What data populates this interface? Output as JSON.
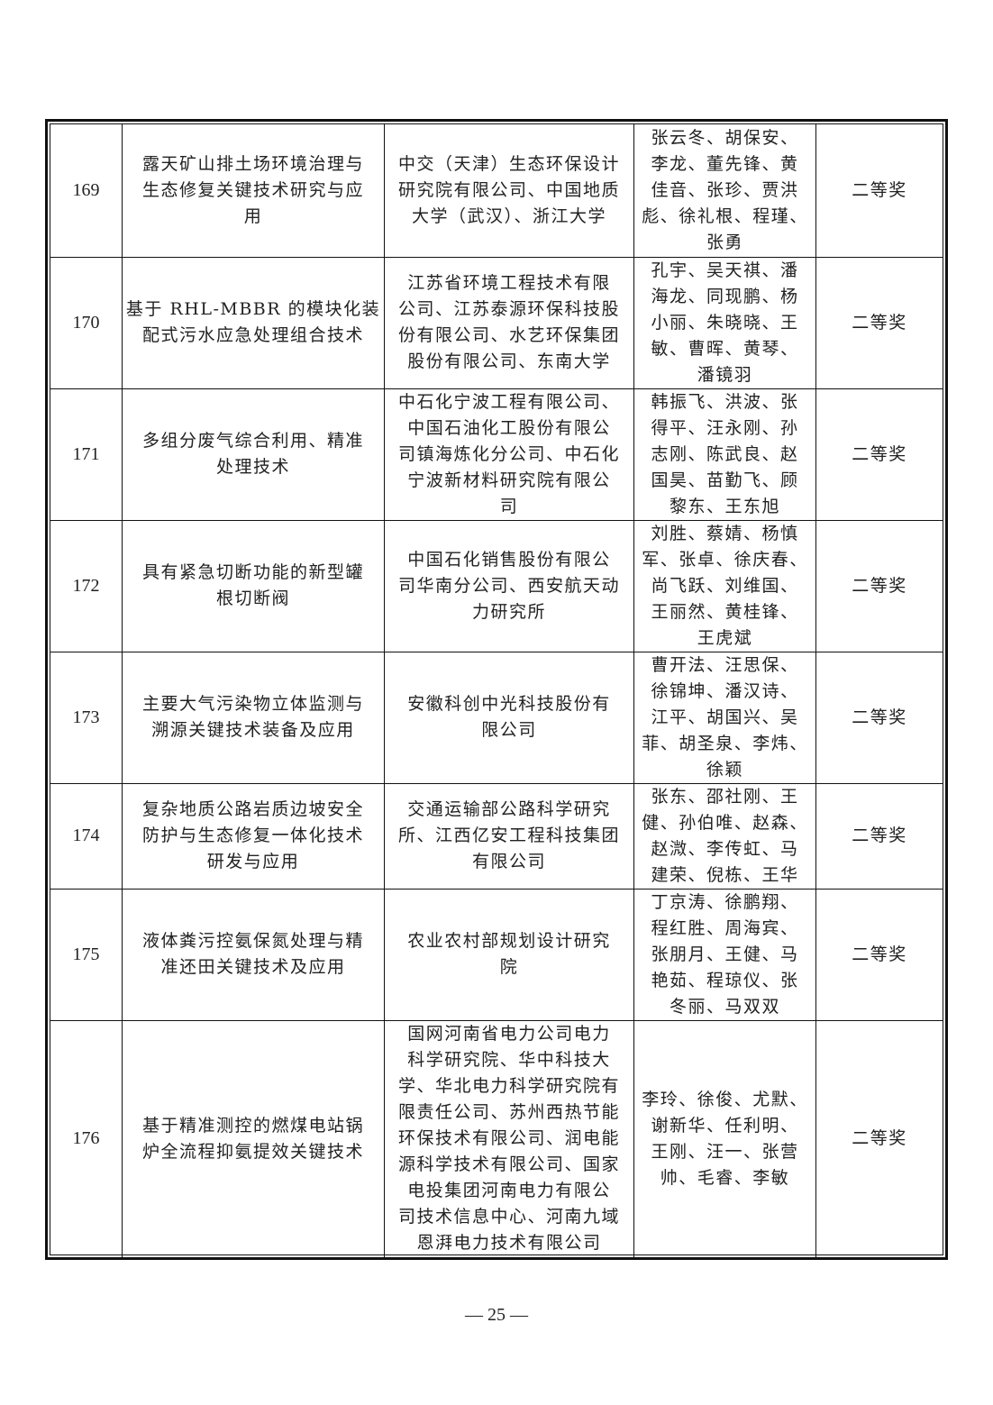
{
  "rows": [
    {
      "no": "169",
      "title": [
        "露天矿山排土场环境治理与",
        "生态修复关键技术研究与应",
        "用"
      ],
      "units": [
        "中交（天津）生态环保设计",
        "研究院有限公司、中国地质",
        "大学（武汉）、浙江大学"
      ],
      "people": [
        "张云冬、胡保安、",
        "李龙、董先锋、黄",
        "佳音、张珍、贾洪",
        "彪、徐礼根、程瑾、",
        "张勇"
      ],
      "award": "二等奖"
    },
    {
      "no": "170",
      "title": [
        "基于 RHL-MBBR 的模块化装",
        "配式污水应急处理组合技术"
      ],
      "units": [
        "江苏省环境工程技术有限",
        "公司、江苏泰源环保科技股",
        "份有限公司、水艺环保集团",
        "股份有限公司、东南大学"
      ],
      "people": [
        "孔宇、吴天祺、潘",
        "海龙、同现鹏、杨",
        "小丽、朱晓晓、王",
        "敏、曹晖、黄琴、",
        "潘镜羽"
      ],
      "award": "二等奖"
    },
    {
      "no": "171",
      "title": [
        "多组分废气综合利用、精准",
        "处理技术"
      ],
      "units": [
        "中石化宁波工程有限公司、",
        "中国石油化工股份有限公",
        "司镇海炼化分公司、中石化",
        "宁波新材料研究院有限公",
        "司"
      ],
      "people": [
        "韩振飞、洪波、张",
        "得平、汪永刚、孙",
        "志刚、陈武良、赵",
        "国昊、苗勤飞、顾",
        "黎东、王东旭"
      ],
      "award": "二等奖"
    },
    {
      "no": "172",
      "title": [
        "具有紧急切断功能的新型罐",
        "根切断阀"
      ],
      "units": [
        "中国石化销售股份有限公",
        "司华南分公司、西安航天动",
        "力研究所"
      ],
      "people": [
        "刘胜、蔡婧、杨慎",
        "军、张卓、徐庆春、",
        "尚飞跃、刘维国、",
        "王丽然、黄桂锋、",
        "王虎斌"
      ],
      "award": "二等奖"
    },
    {
      "no": "173",
      "title": [
        "主要大气污染物立体监测与",
        "溯源关键技术装备及应用"
      ],
      "units": [
        "安徽科创中光科技股份有",
        "限公司"
      ],
      "people": [
        "曹开法、汪思保、",
        "徐锦坤、潘汉诗、",
        "江平、胡国兴、吴",
        "菲、胡圣泉、李炜、",
        "徐颖"
      ],
      "award": "二等奖"
    },
    {
      "no": "174",
      "title": [
        "复杂地质公路岩质边坡安全",
        "防护与生态修复一体化技术",
        "研发与应用"
      ],
      "units": [
        "交通运输部公路科学研究",
        "所、江西亿安工程科技集团",
        "有限公司"
      ],
      "people": [
        "张东、邵社刚、王",
        "健、孙伯唯、赵森、",
        "赵溦、李传虹、马",
        "建荣、倪栋、王华"
      ],
      "award": "二等奖"
    },
    {
      "no": "175",
      "title": [
        "液体粪污控氨保氮处理与精",
        "准还田关键技术及应用"
      ],
      "units": [
        "农业农村部规划设计研究",
        "院"
      ],
      "people": [
        "丁京涛、徐鹏翔、",
        "程红胜、周海宾、",
        "张朋月、王健、马",
        "艳茹、程琼仪、张",
        "冬丽、马双双"
      ],
      "award": "二等奖"
    },
    {
      "no": "176",
      "title": [
        "基于精准测控的燃煤电站锅",
        "炉全流程抑氨提效关键技术"
      ],
      "units": [
        "国网河南省电力公司电力",
        "科学研究院、华中科技大",
        "学、华北电力科学研究院有",
        "限责任公司、苏州西热节能",
        "环保技术有限公司、润电能",
        "源科学技术有限公司、国家",
        "电投集团河南电力有限公",
        "司技术信息中心、河南九域",
        "恩湃电力技术有限公司"
      ],
      "people": [
        "李玲、徐俊、尤默、",
        "谢新华、任利明、",
        "王刚、汪一、张营",
        "帅、毛睿、李敏"
      ],
      "award": "二等奖"
    }
  ],
  "page_number": "— 25 —"
}
